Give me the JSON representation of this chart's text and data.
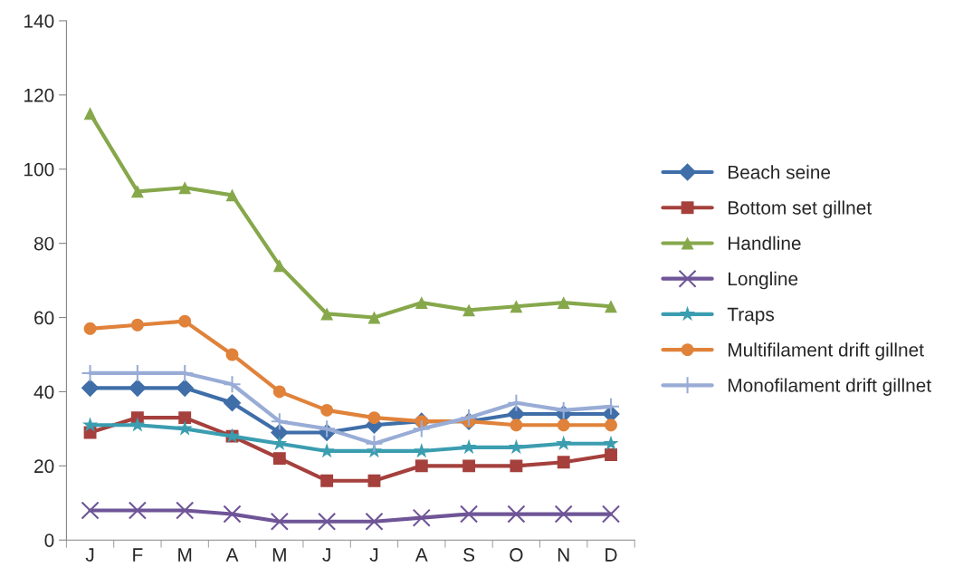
{
  "chart_data": {
    "type": "line",
    "categories": [
      "J",
      "F",
      "M",
      "A",
      "M",
      "J",
      "J",
      "A",
      "S",
      "O",
      "N",
      "D"
    ],
    "series": [
      {
        "name": "Beach seine",
        "color": "#3f6ea8",
        "marker": "diamond",
        "values": [
          41,
          41,
          41,
          37,
          29,
          29,
          31,
          32,
          32,
          34,
          34,
          34
        ]
      },
      {
        "name": "Bottom set gillnet",
        "color": "#a5403d",
        "marker": "square",
        "values": [
          29,
          33,
          33,
          28,
          22,
          16,
          16,
          20,
          20,
          20,
          21,
          23
        ]
      },
      {
        "name": "Handline",
        "color": "#86a84b",
        "marker": "triangle",
        "values": [
          115,
          94,
          95,
          93,
          74,
          61,
          60,
          64,
          62,
          63,
          64,
          63
        ]
      },
      {
        "name": "Longline",
        "color": "#6f5597",
        "marker": "cross",
        "values": [
          8,
          8,
          8,
          7,
          5,
          5,
          5,
          6,
          7,
          7,
          7,
          7
        ]
      },
      {
        "name": "Traps",
        "color": "#3b9db0",
        "marker": "star",
        "values": [
          31,
          31,
          30,
          28,
          26,
          24,
          24,
          24,
          25,
          25,
          26,
          26
        ]
      },
      {
        "name": "Multifilament drift gillnet",
        "color": "#e0823a",
        "marker": "circle",
        "values": [
          57,
          58,
          59,
          50,
          40,
          35,
          33,
          32,
          32,
          31,
          31,
          31
        ]
      },
      {
        "name": "Monofilament drift gillnet",
        "color": "#98acd6",
        "marker": "plus",
        "values": [
          45,
          45,
          45,
          42,
          32,
          30,
          26,
          30,
          33,
          37,
          35,
          36
        ]
      }
    ],
    "ylim": [
      0,
      140
    ],
    "yticks": [
      0,
      20,
      40,
      60,
      80,
      100,
      120,
      140
    ],
    "grid": false,
    "legend": "right",
    "line_style": "solid"
  }
}
